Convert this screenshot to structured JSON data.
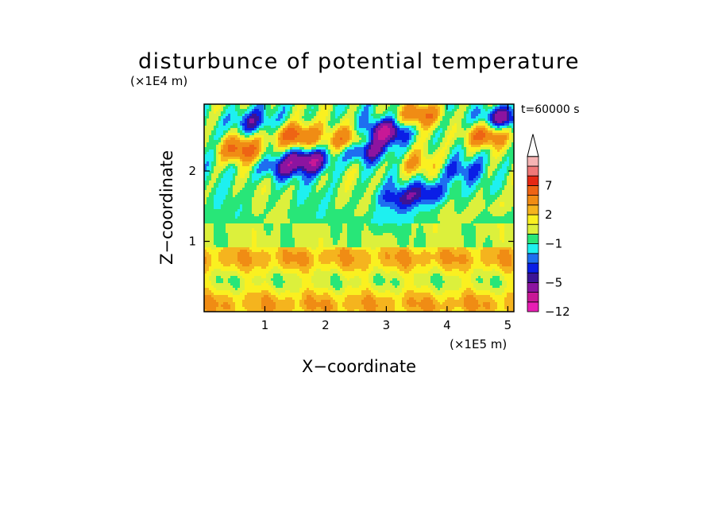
{
  "chart_data": {
    "type": "heatmap",
    "title": "disturbunce of potential temperature",
    "time_label": "t=60000 s",
    "xlabel": "X−coordinate",
    "ylabel": "Z−coordinate",
    "x_unit": "(×1E5 m)",
    "y_unit": "(×1E4 m)",
    "xlim": [
      0,
      5.1
    ],
    "ylim": [
      0,
      2.95
    ],
    "x_ticks": [
      1,
      2,
      3,
      4,
      5
    ],
    "x_tick_labels": [
      "1",
      "2",
      "3",
      "4",
      "5"
    ],
    "y_ticks": [
      1,
      2
    ],
    "y_tick_labels": [
      "1",
      "2"
    ],
    "colorbar": {
      "levels": [
        -12,
        -9,
        -7,
        -5,
        -4,
        -3,
        -2,
        -1,
        0,
        1,
        2,
        3,
        5,
        7,
        9,
        11
      ],
      "labeled_levels": [
        7,
        2,
        -1,
        -5,
        -12
      ],
      "labels": [
        "7",
        "2",
        "−1",
        "−5",
        "−12"
      ],
      "colors": [
        "#e81eb4",
        "#c81896",
        "#8c14a0",
        "#3c1496",
        "#0a1ee6",
        "#1e6ef0",
        "#1ef0f0",
        "#28e678",
        "#dcf03c",
        "#faf020",
        "#f5b41e",
        "#f08c14",
        "#ee6414",
        "#e62814",
        "#f07878",
        "#f5b4b4"
      ],
      "extend_max": true
    },
    "features": [
      {
        "x": 1.5,
        "z": 2.5,
        "v": 7
      },
      {
        "x": 0.6,
        "z": 2.3,
        "v": 6
      },
      {
        "x": 2.4,
        "z": 2.45,
        "v": 5
      },
      {
        "x": 3.0,
        "z": 2.55,
        "v": -7
      },
      {
        "x": 2.65,
        "z": 2.3,
        "v": -5
      },
      {
        "x": 1.75,
        "z": 2.15,
        "v": -6
      },
      {
        "x": 1.25,
        "z": 2.05,
        "v": -4
      },
      {
        "x": 0.75,
        "z": 2.7,
        "v": -4
      },
      {
        "x": 3.6,
        "z": 2.8,
        "v": 5
      },
      {
        "x": 4.6,
        "z": 2.5,
        "v": 6
      },
      {
        "x": 4.9,
        "z": 2.75,
        "v": -6
      },
      {
        "x": 4.2,
        "z": 2.0,
        "v": -3
      },
      {
        "x": 3.2,
        "z": 1.6,
        "v": -3
      },
      {
        "x": 3.7,
        "z": 1.7,
        "v": -4
      },
      {
        "x": 4.8,
        "z": 1.5,
        "v": 1.5
      },
      {
        "x": 2.9,
        "z": 1.25,
        "v": -1.5
      },
      {
        "x": 3.5,
        "z": 2.1,
        "v": 3
      }
    ]
  }
}
